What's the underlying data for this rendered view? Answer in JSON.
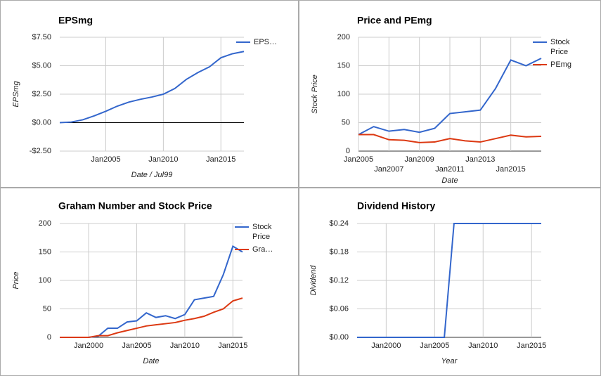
{
  "chart_data": [
    {
      "type": "line",
      "title": "EPSmg",
      "x_label": "Date / Jul99",
      "y_label": "EPSmg",
      "x": [
        2001,
        2002,
        2003,
        2004,
        2005,
        2006,
        2007,
        2008,
        2009,
        2010,
        2011,
        2012,
        2013,
        2014,
        2015,
        2016,
        2017
      ],
      "series": [
        {
          "name": "EPS…",
          "color": "#3366cc",
          "values": [
            0.0,
            0.05,
            0.25,
            0.6,
            1.0,
            1.45,
            1.8,
            2.05,
            2.25,
            2.5,
            3.0,
            3.8,
            4.4,
            4.9,
            5.7,
            6.05,
            6.25
          ]
        }
      ],
      "xlim": [
        2001,
        2017
      ],
      "xticks": [
        {
          "value": 2005,
          "label": "Jan2005"
        },
        {
          "value": 2010,
          "label": "Jan2010"
        },
        {
          "value": 2015,
          "label": "Jan2015"
        }
      ],
      "ylim": [
        -2.5,
        7.5
      ],
      "yticks": [
        {
          "value": -2.5,
          "label": "-$2.50"
        },
        {
          "value": 0,
          "label": "$0.00"
        },
        {
          "value": 2.5,
          "label": "$2.50"
        },
        {
          "value": 5,
          "label": "$5.00"
        },
        {
          "value": 7.5,
          "label": "$7.50"
        }
      ],
      "grid": true,
      "legend": "right"
    },
    {
      "type": "line",
      "title": "Price and PEmg",
      "x_label": "Date",
      "y_label": "Stock Price",
      "x": [
        2005,
        2006,
        2007,
        2008,
        2009,
        2010,
        2011,
        2012,
        2013,
        2014,
        2015,
        2016,
        2017
      ],
      "series": [
        {
          "name": "Stock Price",
          "color": "#3366cc",
          "values": [
            29,
            43,
            35,
            38,
            33,
            40,
            66,
            69,
            72,
            110,
            160,
            150,
            163
          ]
        },
        {
          "name": "PEmg",
          "color": "#dc3912",
          "values": [
            29,
            29,
            20,
            19,
            15,
            16,
            22,
            18,
            16,
            22,
            28,
            25,
            26
          ]
        }
      ],
      "xlim": [
        2005,
        2017
      ],
      "xticks": [
        {
          "value": 2005,
          "label": "Jan2005"
        },
        {
          "value": 2007,
          "label": "Jan2007"
        },
        {
          "value": 2009,
          "label": "Jan2009"
        },
        {
          "value": 2011,
          "label": "Jan2011"
        },
        {
          "value": 2013,
          "label": "Jan2013"
        },
        {
          "value": 2015,
          "label": "Jan2015"
        }
      ],
      "ylim": [
        0,
        200
      ],
      "yticks": [
        0,
        50,
        100,
        150,
        200
      ],
      "grid": true,
      "legend": "right"
    },
    {
      "type": "line",
      "title": "Graham Number and Stock Price",
      "x_label": "Date",
      "y_label": "Price",
      "x": [
        1997,
        1998,
        1999,
        2000,
        2001,
        2002,
        2003,
        2004,
        2005,
        2006,
        2007,
        2008,
        2009,
        2010,
        2011,
        2012,
        2013,
        2014,
        2015,
        2016
      ],
      "series": [
        {
          "name": "Stock Price",
          "color": "#3366cc",
          "values": [
            0,
            0,
            0,
            0,
            2,
            16,
            16,
            27,
            29,
            43,
            35,
            38,
            33,
            40,
            66,
            69,
            72,
            110,
            160,
            150
          ]
        },
        {
          "name": "Gra…",
          "color": "#dc3912",
          "values": [
            0,
            0,
            0,
            0,
            3,
            3,
            8,
            12,
            16,
            20,
            22,
            24,
            26,
            30,
            33,
            37,
            44,
            50,
            64,
            69
          ]
        }
      ],
      "xlim": [
        1997,
        2016
      ],
      "xticks": [
        {
          "value": 2000,
          "label": "Jan2000"
        },
        {
          "value": 2005,
          "label": "Jan2005"
        },
        {
          "value": 2010,
          "label": "Jan2010"
        },
        {
          "value": 2015,
          "label": "Jan2015"
        }
      ],
      "ylim": [
        0,
        200
      ],
      "yticks": [
        0,
        50,
        100,
        150,
        200
      ],
      "grid": true,
      "legend": "right"
    },
    {
      "type": "line",
      "title": "Dividend History",
      "x_label": "Year",
      "y_label": "Dividend",
      "x": [
        1997,
        1998,
        1999,
        2000,
        2001,
        2002,
        2003,
        2004,
        2005,
        2006,
        2007,
        2008,
        2009,
        2010,
        2011,
        2012,
        2013,
        2014,
        2015,
        2016
      ],
      "series": [
        {
          "color": "#3366cc",
          "values": [
            0,
            0,
            0,
            0,
            0,
            0,
            0,
            0,
            0,
            0,
            0.24,
            0.24,
            0.24,
            0.24,
            0.24,
            0.24,
            0.24,
            0.24,
            0.24,
            0.24
          ]
        }
      ],
      "xlim": [
        1997,
        2016
      ],
      "xticks": [
        {
          "value": 2000,
          "label": "Jan2000"
        },
        {
          "value": 2005,
          "label": "Jan2005"
        },
        {
          "value": 2010,
          "label": "Jan2010"
        },
        {
          "value": 2015,
          "label": "Jan2015"
        }
      ],
      "ylim": [
        0,
        0.24
      ],
      "yticks": [
        {
          "value": 0,
          "label": "$0.00"
        },
        {
          "value": 0.06,
          "label": "$0.06"
        },
        {
          "value": 0.12,
          "label": "$0.12"
        },
        {
          "value": 0.18,
          "label": "$0.18"
        },
        {
          "value": 0.24,
          "label": "$0.24"
        }
      ],
      "grid": true
    }
  ]
}
